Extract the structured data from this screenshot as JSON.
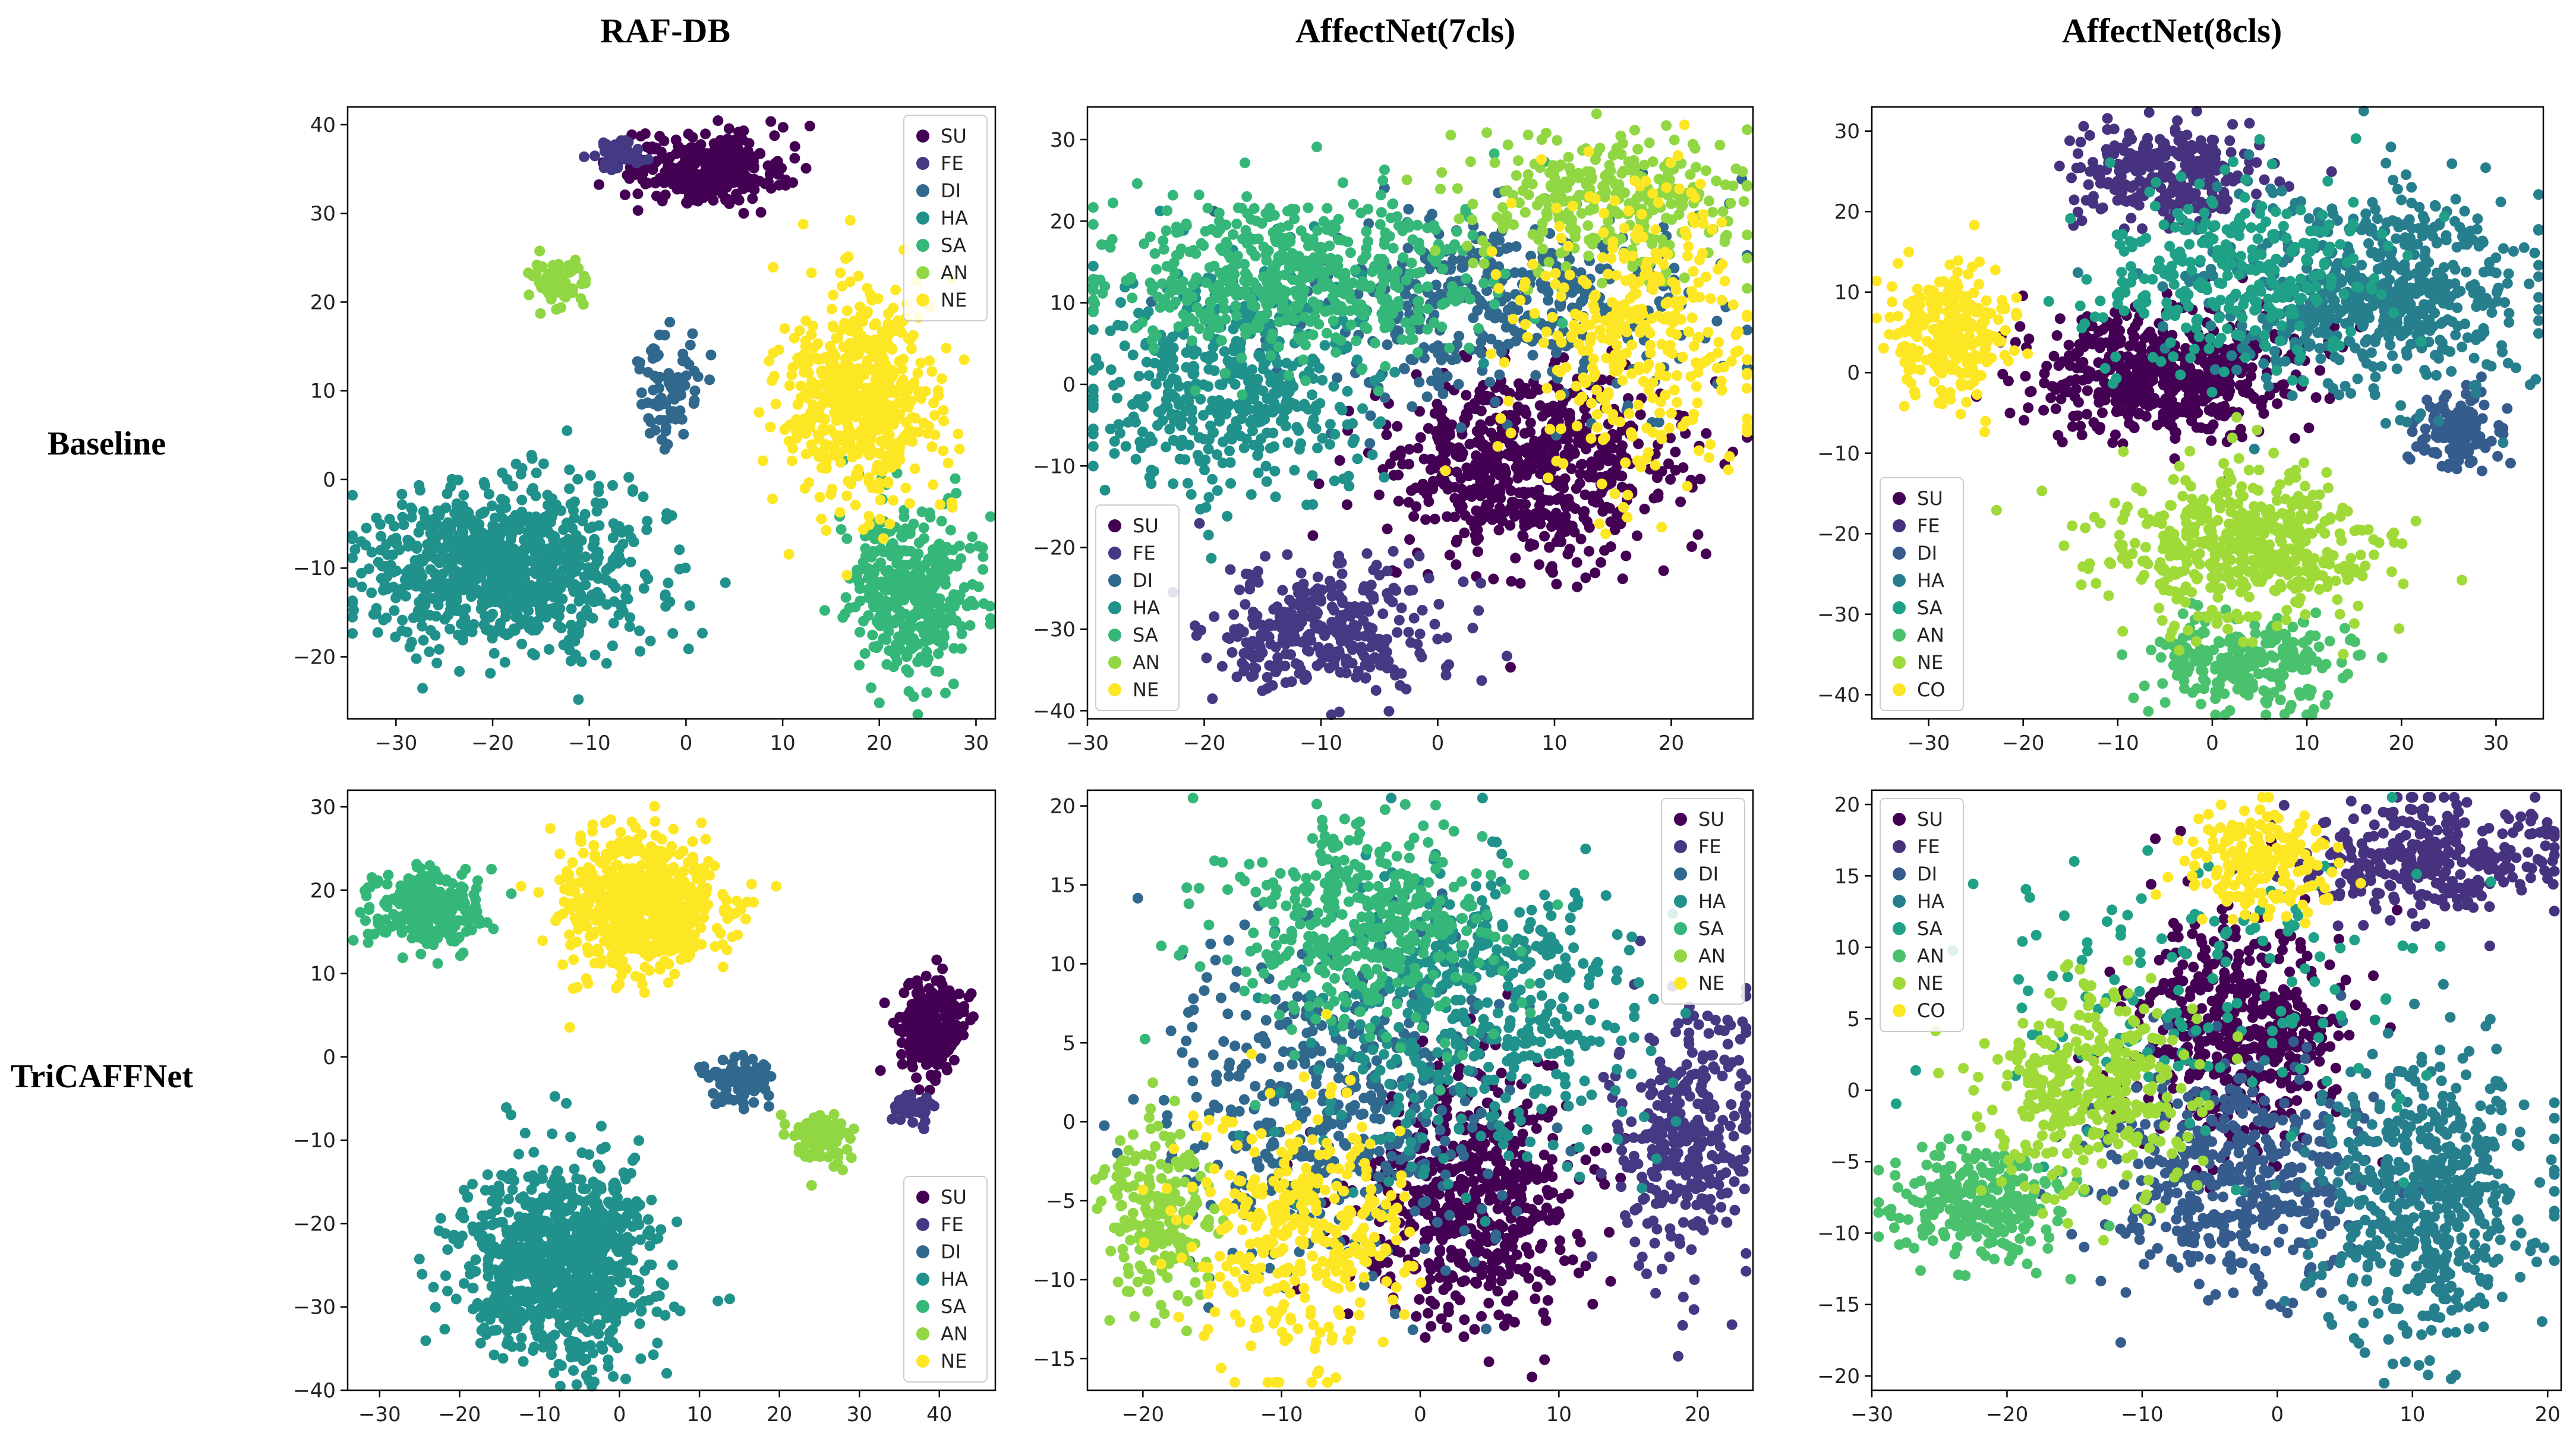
{
  "column_titles": [
    "RAF-DB",
    "AffectNet(7cls)",
    "AffectNet(8cls)"
  ],
  "row_titles": [
    "Baseline",
    "TriCAFFNet"
  ],
  "palette": {
    "7": [
      "#440154",
      "#443983",
      "#31688e",
      "#21918c",
      "#35b779",
      "#90d743",
      "#fde725"
    ],
    "8": [
      "#440154",
      "#46327e",
      "#365c8d",
      "#277f8e",
      "#1fa187",
      "#4ac16d",
      "#a0da39",
      "#fde725"
    ]
  },
  "chart_data": [
    {
      "id": "raf-baseline",
      "type": "scatter",
      "title": "RAF-DB",
      "row": "Baseline",
      "xlim": [
        -35,
        32
      ],
      "ylim": [
        -27,
        42
      ],
      "xticks": [
        -30,
        -20,
        -10,
        0,
        10,
        20,
        30
      ],
      "yticks": [
        -20,
        -10,
        0,
        10,
        20,
        30,
        40
      ],
      "legend": {
        "position": "top-right",
        "labels": [
          "SU",
          "FE",
          "DI",
          "HA",
          "SA",
          "AN",
          "NE"
        ]
      },
      "clusters": [
        {
          "cls": 0,
          "cx": 2,
          "cy": 35,
          "sx": 4,
          "sy": 2,
          "n": 300
        },
        {
          "cls": 1,
          "cx": -7,
          "cy": 37,
          "sx": 1.5,
          "sy": 1,
          "n": 40
        },
        {
          "cls": 2,
          "cx": -2,
          "cy": 10,
          "sx": 1.8,
          "sy": 3,
          "n": 80
        },
        {
          "cls": 3,
          "cx": -19,
          "cy": -10,
          "sx": 7,
          "sy": 4.5,
          "n": 900
        },
        {
          "cls": 4,
          "cx": 23,
          "cy": -13,
          "sx": 3.5,
          "sy": 5,
          "n": 380
        },
        {
          "cls": 5,
          "cx": -13,
          "cy": 22,
          "sx": 1.3,
          "sy": 1.3,
          "n": 60
        },
        {
          "cls": 6,
          "cx": 18,
          "cy": 9,
          "sx": 4,
          "sy": 6,
          "n": 550
        }
      ]
    },
    {
      "id": "aff7-baseline",
      "type": "scatter",
      "title": "AffectNet(7cls)",
      "row": "Baseline",
      "xlim": [
        -30,
        27
      ],
      "ylim": [
        -41,
        34
      ],
      "xticks": [
        -30,
        -20,
        -10,
        0,
        10,
        20
      ],
      "yticks": [
        -40,
        -30,
        -20,
        -10,
        0,
        10,
        20,
        30
      ],
      "legend": {
        "position": "bottom-left",
        "labels": [
          "SU",
          "FE",
          "DI",
          "HA",
          "SA",
          "AN",
          "NE"
        ]
      },
      "clusters": [
        {
          "cls": 0,
          "cx": 8,
          "cy": -10,
          "sx": 6,
          "sy": 6,
          "n": 650
        },
        {
          "cls": 1,
          "cx": -10,
          "cy": -30,
          "sx": 5,
          "sy": 4,
          "n": 320
        },
        {
          "cls": 2,
          "cx": 5,
          "cy": 10,
          "sx": 9,
          "sy": 6,
          "n": 400
        },
        {
          "cls": 3,
          "cx": -18,
          "cy": 0,
          "sx": 6,
          "sy": 7,
          "n": 500
        },
        {
          "cls": 4,
          "cx": -12,
          "cy": 13,
          "sx": 8,
          "sy": 5,
          "n": 550
        },
        {
          "cls": 5,
          "cx": 15,
          "cy": 22,
          "sx": 6,
          "sy": 4,
          "n": 300
        },
        {
          "cls": 6,
          "cx": 17,
          "cy": 6,
          "sx": 5,
          "sy": 9,
          "n": 350
        }
      ]
    },
    {
      "id": "aff8-baseline",
      "type": "scatter",
      "title": "AffectNet(8cls)",
      "row": "Baseline",
      "xlim": [
        -36,
        35
      ],
      "ylim": [
        -43,
        33
      ],
      "xticks": [
        -30,
        -20,
        -10,
        0,
        10,
        20,
        30
      ],
      "yticks": [
        -40,
        -30,
        -20,
        -10,
        0,
        10,
        20,
        30
      ],
      "legend": {
        "position": "bottom-left",
        "labels": [
          "SU",
          "FE",
          "DI",
          "HA",
          "SA",
          "AN",
          "NE",
          "CO"
        ]
      },
      "clusters": [
        {
          "cls": 0,
          "cx": -5,
          "cy": 0,
          "sx": 7,
          "sy": 4,
          "n": 550
        },
        {
          "cls": 1,
          "cx": -5,
          "cy": 25,
          "sx": 5,
          "sy": 3,
          "n": 280
        },
        {
          "cls": 2,
          "cx": 26,
          "cy": -7,
          "sx": 2.5,
          "sy": 2.5,
          "n": 120
        },
        {
          "cls": 3,
          "cx": 17,
          "cy": 10,
          "sx": 8,
          "sy": 6,
          "n": 600
        },
        {
          "cls": 4,
          "cx": 3,
          "cy": 12,
          "sx": 8,
          "sy": 6,
          "n": 300
        },
        {
          "cls": 5,
          "cx": 4,
          "cy": -36,
          "sx": 5,
          "sy": 3,
          "n": 250
        },
        {
          "cls": 6,
          "cx": 3,
          "cy": -22,
          "sx": 7,
          "sy": 5,
          "n": 480
        },
        {
          "cls": 7,
          "cx": -28,
          "cy": 5,
          "sx": 3,
          "sy": 4,
          "n": 250
        }
      ]
    },
    {
      "id": "raf-tricaffnet",
      "type": "scatter",
      "title": "RAF-DB",
      "row": "TriCAFFNet",
      "xlim": [
        -34,
        47
      ],
      "ylim": [
        -40,
        32
      ],
      "xticks": [
        -30,
        -20,
        -10,
        0,
        10,
        20,
        30,
        40
      ],
      "yticks": [
        -40,
        -30,
        -20,
        -10,
        0,
        10,
        20,
        30
      ],
      "legend": {
        "position": "bottom-right",
        "labels": [
          "SU",
          "FE",
          "DI",
          "HA",
          "SA",
          "AN",
          "NE"
        ]
      },
      "clusters": [
        {
          "cls": 0,
          "cx": 39,
          "cy": 4,
          "sx": 2,
          "sy": 3,
          "n": 250
        },
        {
          "cls": 1,
          "cx": 37,
          "cy": -6,
          "sx": 1.3,
          "sy": 1,
          "n": 40
        },
        {
          "cls": 2,
          "cx": 15,
          "cy": -3,
          "sx": 2,
          "sy": 1.5,
          "n": 90
        },
        {
          "cls": 3,
          "cx": -7,
          "cy": -25,
          "sx": 6,
          "sy": 6,
          "n": 950
        },
        {
          "cls": 4,
          "cx": -24,
          "cy": 18,
          "sx": 3.5,
          "sy": 2.5,
          "n": 300
        },
        {
          "cls": 5,
          "cx": 25,
          "cy": -10,
          "sx": 2,
          "sy": 1.5,
          "n": 100
        },
        {
          "cls": 6,
          "cx": 3,
          "cy": 18,
          "sx": 5,
          "sy": 4,
          "n": 650
        }
      ]
    },
    {
      "id": "aff7-tricaffnet",
      "type": "scatter",
      "title": "AffectNet(7cls)",
      "row": "TriCAFFNet",
      "xlim": [
        -24,
        24
      ],
      "ylim": [
        -17,
        21
      ],
      "xticks": [
        -20,
        -10,
        0,
        10,
        20
      ],
      "yticks": [
        -15,
        -10,
        -5,
        0,
        5,
        10,
        15,
        20
      ],
      "legend": {
        "position": "top-right",
        "labels": [
          "SU",
          "FE",
          "DI",
          "HA",
          "SA",
          "AN",
          "NE"
        ]
      },
      "clusters": [
        {
          "cls": 0,
          "cx": 4,
          "cy": -5,
          "sx": 4,
          "sy": 4,
          "n": 550
        },
        {
          "cls": 1,
          "cx": 19,
          "cy": -1,
          "sx": 2.5,
          "sy": 4,
          "n": 320
        },
        {
          "cls": 2,
          "cx": -6,
          "cy": 1,
          "sx": 6,
          "sy": 5,
          "n": 450
        },
        {
          "cls": 3,
          "cx": 4,
          "cy": 7,
          "sx": 6,
          "sy": 5,
          "n": 450
        },
        {
          "cls": 4,
          "cx": -4,
          "cy": 12,
          "sx": 5,
          "sy": 3.5,
          "n": 400
        },
        {
          "cls": 5,
          "cx": -19,
          "cy": -6,
          "sx": 2,
          "sy": 3,
          "n": 200
        },
        {
          "cls": 6,
          "cx": -9,
          "cy": -7,
          "sx": 4,
          "sy": 4,
          "n": 350
        }
      ]
    },
    {
      "id": "aff8-tricaffnet",
      "type": "scatter",
      "title": "AffectNet(8cls)",
      "row": "TriCAFFNet",
      "xlim": [
        -30,
        21
      ],
      "ylim": [
        -21,
        21
      ],
      "xticks": [
        -30,
        -20,
        -10,
        0,
        10,
        20
      ],
      "yticks": [
        -20,
        -15,
        -10,
        -5,
        0,
        5,
        10,
        15,
        20
      ],
      "legend": {
        "position": "top-left",
        "labels": [
          "SU",
          "FE",
          "DI",
          "HA",
          "SA",
          "AN",
          "NE",
          "CO"
        ]
      },
      "clusters": [
        {
          "cls": 0,
          "cx": -3,
          "cy": 4,
          "sx": 4,
          "sy": 4,
          "n": 500
        },
        {
          "cls": 1,
          "cx": 11,
          "cy": 16,
          "sx": 5,
          "sy": 2,
          "n": 320
        },
        {
          "cls": 2,
          "cx": -3,
          "cy": -6,
          "sx": 5,
          "sy": 4,
          "n": 450
        },
        {
          "cls": 3,
          "cx": 11,
          "cy": -8,
          "sx": 4,
          "sy": 5,
          "n": 550
        },
        {
          "cls": 4,
          "cx": -5,
          "cy": 7,
          "sx": 9,
          "sy": 6,
          "n": 150
        },
        {
          "cls": 5,
          "cx": -22,
          "cy": -8,
          "sx": 3,
          "sy": 2,
          "n": 250
        },
        {
          "cls": 6,
          "cx": -14,
          "cy": 0,
          "sx": 4,
          "sy": 3.5,
          "n": 350
        },
        {
          "cls": 7,
          "cx": -1,
          "cy": 16,
          "sx": 3,
          "sy": 2,
          "n": 200
        }
      ]
    }
  ]
}
